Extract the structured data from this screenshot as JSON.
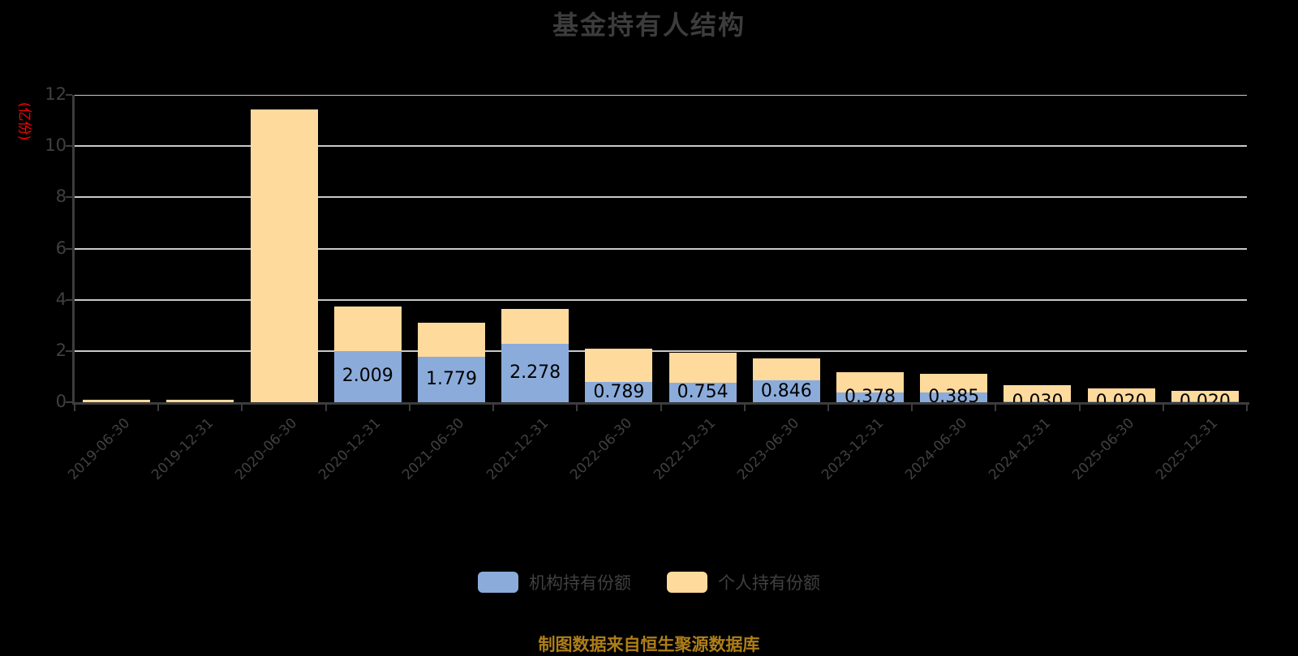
{
  "title": "基金持有人结构",
  "y_axis": {
    "unit_label": "(亿份)",
    "ticks": [
      0,
      2,
      4,
      6,
      8,
      10,
      12
    ]
  },
  "legend": [
    {
      "label": "机构持有份额",
      "color": "#8bacdb"
    },
    {
      "label": "个人持有份额",
      "color": "#ffda9d"
    }
  ],
  "footer": "制图数据来自恒生聚源数据库",
  "colors": {
    "background": "#000000",
    "grid": "#c9c9c9",
    "axis": "#3d3d3d",
    "bar_label": "#000000",
    "y_unit": "#ff0000",
    "footer_text": "#ae7e18"
  },
  "chart_data": {
    "type": "bar",
    "stacked": true,
    "title": "基金持有人结构",
    "ylabel": "(亿份)",
    "ylim": [
      0,
      12
    ],
    "grid": true,
    "legend_position": "bottom",
    "categories": [
      "2019-06-30",
      "2019-12-31",
      "2020-06-30",
      "2020-12-31",
      "2021-06-30",
      "2021-12-31",
      "2022-06-30",
      "2022-12-31",
      "2023-06-30",
      "2023-12-31",
      "2024-06-30",
      "2024-12-31",
      "2025-06-30",
      "2025-12-31"
    ],
    "series": [
      {
        "name": "机构持有份额",
        "color": "#8bacdb",
        "values": [
          0,
          0,
          0,
          2.009,
          1.779,
          2.278,
          0.789,
          0.754,
          0.846,
          0.378,
          0.385,
          0.03,
          0.02,
          0.02
        ]
      },
      {
        "name": "个人持有份额",
        "color": "#ffda9d",
        "values": [
          0.1,
          0.08,
          11.43,
          1.73,
          1.34,
          1.35,
          1.31,
          1.19,
          0.88,
          0.79,
          0.73,
          0.63,
          0.53,
          0.42
        ]
      }
    ],
    "bar_labels": [
      "",
      "",
      "",
      "2.009",
      "1.779",
      "2.278",
      "0.789",
      "0.754",
      "0.846",
      "0.378",
      "0.385",
      "0.030",
      "0.020",
      "0.020"
    ]
  }
}
